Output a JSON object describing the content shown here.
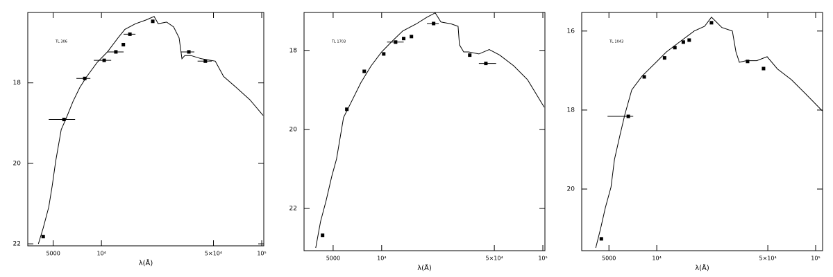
{
  "chart_data": [
    {
      "type": "line",
      "label": "TL 306",
      "xlabel": "λ(Å)",
      "xscale": "log",
      "xlim": [
        3470,
        103000
      ],
      "ylim": [
        22.05,
        16.25
      ],
      "xticks": [
        5000,
        {
          "value": 10000,
          "label": "10⁴"
        },
        {
          "value": 50000,
          "label": "5×10⁴"
        },
        {
          "value": 100000,
          "label": "10⁵"
        }
      ],
      "yticks": [
        18,
        20,
        22
      ],
      "x": [
        4040,
        4330,
        4690,
        4930,
        5180,
        5610,
        6010,
        6650,
        7340,
        8110,
        9420,
        10900,
        12700,
        14000,
        16300,
        18900,
        21300,
        22600,
        25500,
        28200,
        30500,
        31800,
        33100,
        36200,
        42000,
        51300,
        57800,
        69200,
        84400,
        102000
      ],
      "values": [
        22.0,
        21.61,
        21.09,
        20.56,
        19.95,
        19.16,
        18.89,
        18.46,
        18.11,
        17.84,
        17.49,
        17.23,
        16.88,
        16.67,
        16.53,
        16.44,
        16.35,
        16.53,
        16.49,
        16.61,
        16.88,
        17.4,
        17.32,
        17.32,
        17.4,
        17.46,
        17.84,
        18.11,
        18.42,
        18.81
      ],
      "points": {
        "x": [
          4330,
          5840,
          7870,
          10400,
          12300,
          13700,
          15050,
          20900,
          35100,
          44500
        ],
        "values": [
          21.82,
          18.91,
          17.89,
          17.44,
          17.23,
          17.05,
          16.79,
          16.47,
          17.23,
          17.46
        ],
        "xlow": [
          null,
          4690,
          6980,
          8960,
          10900,
          null,
          13750,
          null,
          31200,
          39800
        ],
        "xhigh": [
          null,
          6850,
          8530,
          11500,
          13750,
          null,
          16300,
          null,
          38000,
          48800
        ]
      }
    },
    {
      "type": "line",
      "label": "TL 1703",
      "xlabel": "λ(Å)",
      "xscale": "log",
      "xlim": [
        3300,
        103000
      ],
      "ylim": [
        23.07,
        17.04
      ],
      "xticks": [
        5000,
        {
          "value": 10000,
          "label": "10⁴"
        },
        {
          "value": 50000,
          "label": "5×10⁴"
        },
        {
          "value": 100000,
          "label": "10⁵"
        }
      ],
      "yticks": [
        18,
        20,
        22
      ],
      "x": [
        3900,
        4180,
        4520,
        4900,
        5250,
        5800,
        6400,
        7430,
        8610,
        10000,
        11600,
        13500,
        16400,
        19100,
        21500,
        23300,
        27000,
        29800,
        30400,
        32300,
        34600,
        40100,
        46500,
        54000,
        65900,
        80300,
        102000
      ],
      "values": [
        23.0,
        22.33,
        21.81,
        21.19,
        20.75,
        19.7,
        19.35,
        18.82,
        18.39,
        18.04,
        17.77,
        17.51,
        17.33,
        17.16,
        17.05,
        17.28,
        17.33,
        17.39,
        17.86,
        18.04,
        18.04,
        18.09,
        17.98,
        18.12,
        18.39,
        18.74,
        19.44
      ],
      "points": {
        "x": [
          4300,
          6080,
          7800,
          10300,
          12200,
          13700,
          15300,
          21000,
          35200,
          44300
        ],
        "values": [
          22.68,
          19.49,
          18.53,
          18.09,
          17.79,
          17.7,
          17.65,
          17.32,
          18.12,
          18.33
        ],
        "xlow": [
          null,
          null,
          null,
          null,
          10800,
          null,
          null,
          19100,
          null,
          40100
        ],
        "xhigh": [
          null,
          null,
          null,
          null,
          13700,
          null,
          null,
          22600,
          null,
          51300
        ]
      }
    },
    {
      "type": "line",
      "label": "TL 1043",
      "xlabel": "λ(Å)",
      "xscale": "log",
      "xlim": [
        3370,
        110600
      ],
      "ylim": [
        21.56,
        15.53
      ],
      "xticks": [
        5000,
        {
          "value": 10000,
          "label": "10⁴"
        },
        {
          "value": 50000,
          "label": "5×10⁴"
        },
        {
          "value": 100000,
          "label": "10⁵"
        }
      ],
      "yticks": [
        16,
        18,
        20
      ],
      "x": [
        4130,
        4430,
        4750,
        5150,
        5420,
        5870,
        6300,
        6960,
        8090,
        9910,
        11500,
        14100,
        17200,
        20000,
        22100,
        23300,
        25700,
        29900,
        31500,
        33100,
        36600,
        42600,
        49500,
        57500,
        70300,
        85900,
        110000
      ],
      "values": [
        21.49,
        21.0,
        20.47,
        19.95,
        19.25,
        18.63,
        18.11,
        17.49,
        17.14,
        16.79,
        16.53,
        16.26,
        16.0,
        15.88,
        15.65,
        15.74,
        15.91,
        16.0,
        16.53,
        16.79,
        16.75,
        16.75,
        16.65,
        16.96,
        17.23,
        17.58,
        18.02
      ],
      "points": {
        "x": [
          4480,
          6620,
          8340,
          11200,
          13000,
          14700,
          16000,
          22100,
          37300,
          47000
        ],
        "values": [
          21.26,
          18.16,
          17.16,
          16.68,
          16.42,
          16.28,
          16.23,
          15.79,
          16.77,
          16.95
        ],
        "xlow": [
          null,
          4900,
          null,
          null,
          null,
          null,
          null,
          null,
          null,
          null
        ],
        "xhigh": [
          null,
          7110,
          null,
          null,
          null,
          null,
          null,
          null,
          null,
          null
        ]
      }
    }
  ]
}
